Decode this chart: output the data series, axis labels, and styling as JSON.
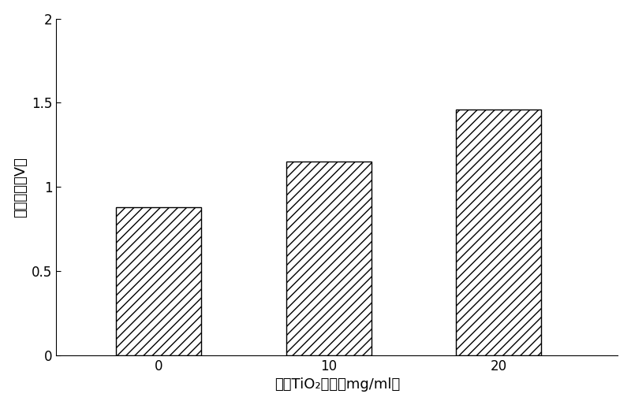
{
  "categories": [
    "0",
    "10",
    "20"
  ],
  "values": [
    0.88,
    1.15,
    1.46
  ],
  "xlabel": "纳米TiO₂浓度（mg/ml）",
  "ylabel": "荧光强度（V）",
  "ylim": [
    0,
    2.0
  ],
  "yticks": [
    0,
    0.5,
    1.0,
    1.5,
    2.0
  ],
  "ytick_labels": [
    "0",
    "0.5",
    "1",
    "1.5",
    "2"
  ],
  "bar_color": "white",
  "hatch": "///",
  "bar_width": 0.5,
  "background_color": "#ffffff",
  "figure_bg": "#ffffff",
  "xlabel_fontsize": 13,
  "ylabel_fontsize": 13,
  "tick_fontsize": 12,
  "bar_positions": [
    1,
    2,
    3
  ]
}
